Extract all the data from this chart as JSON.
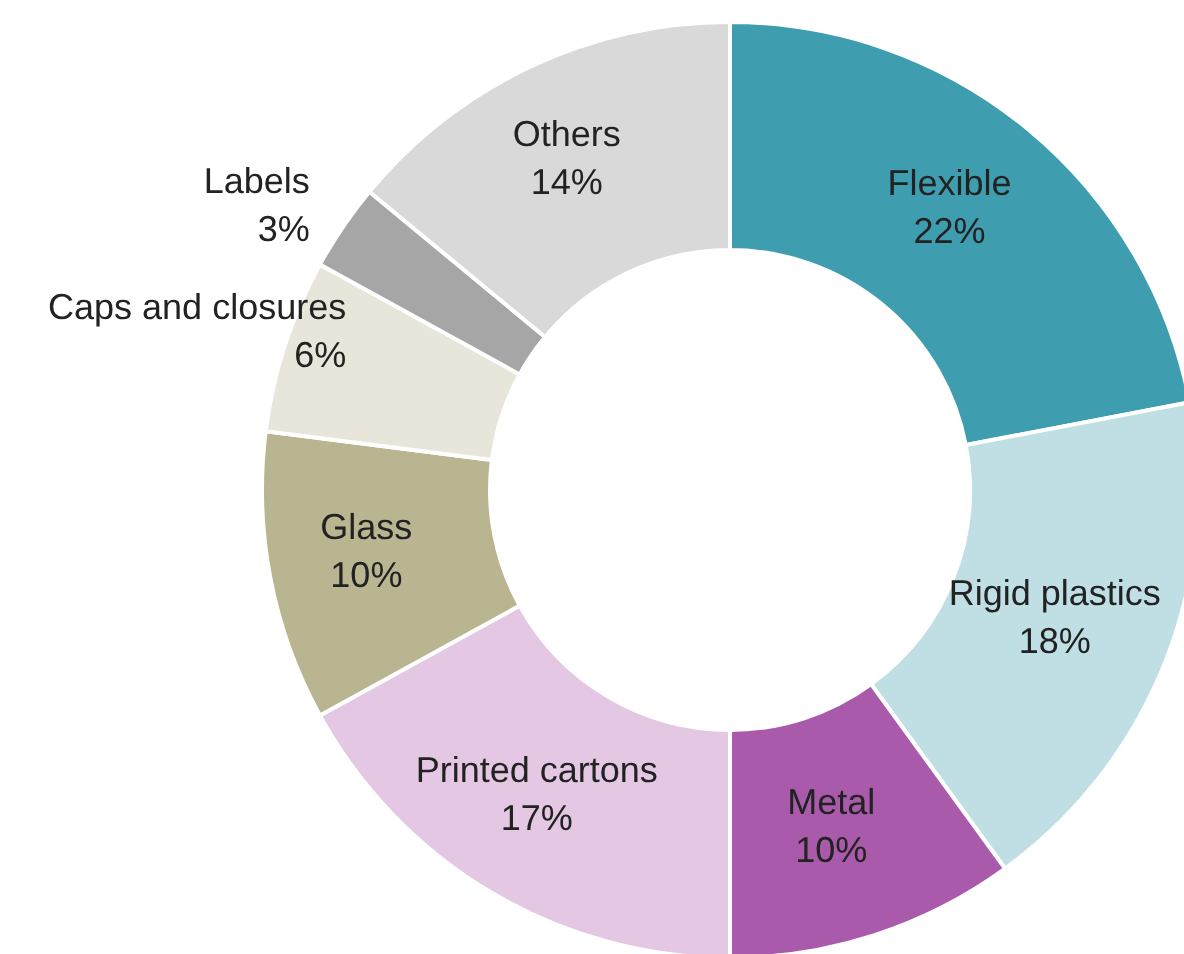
{
  "chart_data": {
    "type": "donut",
    "categories": [
      "Flexible",
      "Rigid plastics",
      "Metal",
      "Printed cartons",
      "Glass",
      "Caps and closures",
      "Labels",
      "Others"
    ],
    "values": [
      22,
      18,
      10,
      17,
      10,
      6,
      3,
      14
    ],
    "value_labels": [
      "22%",
      "18%",
      "10%",
      "17%",
      "10%",
      "6%",
      "3%",
      "14%"
    ],
    "colors": [
      "#3f9db0",
      "#bfdfe4",
      "#a95aab",
      "#e3c7e3",
      "#bab591",
      "#e8e6da",
      "#a6a6a6",
      "#d9d9d9"
    ]
  }
}
